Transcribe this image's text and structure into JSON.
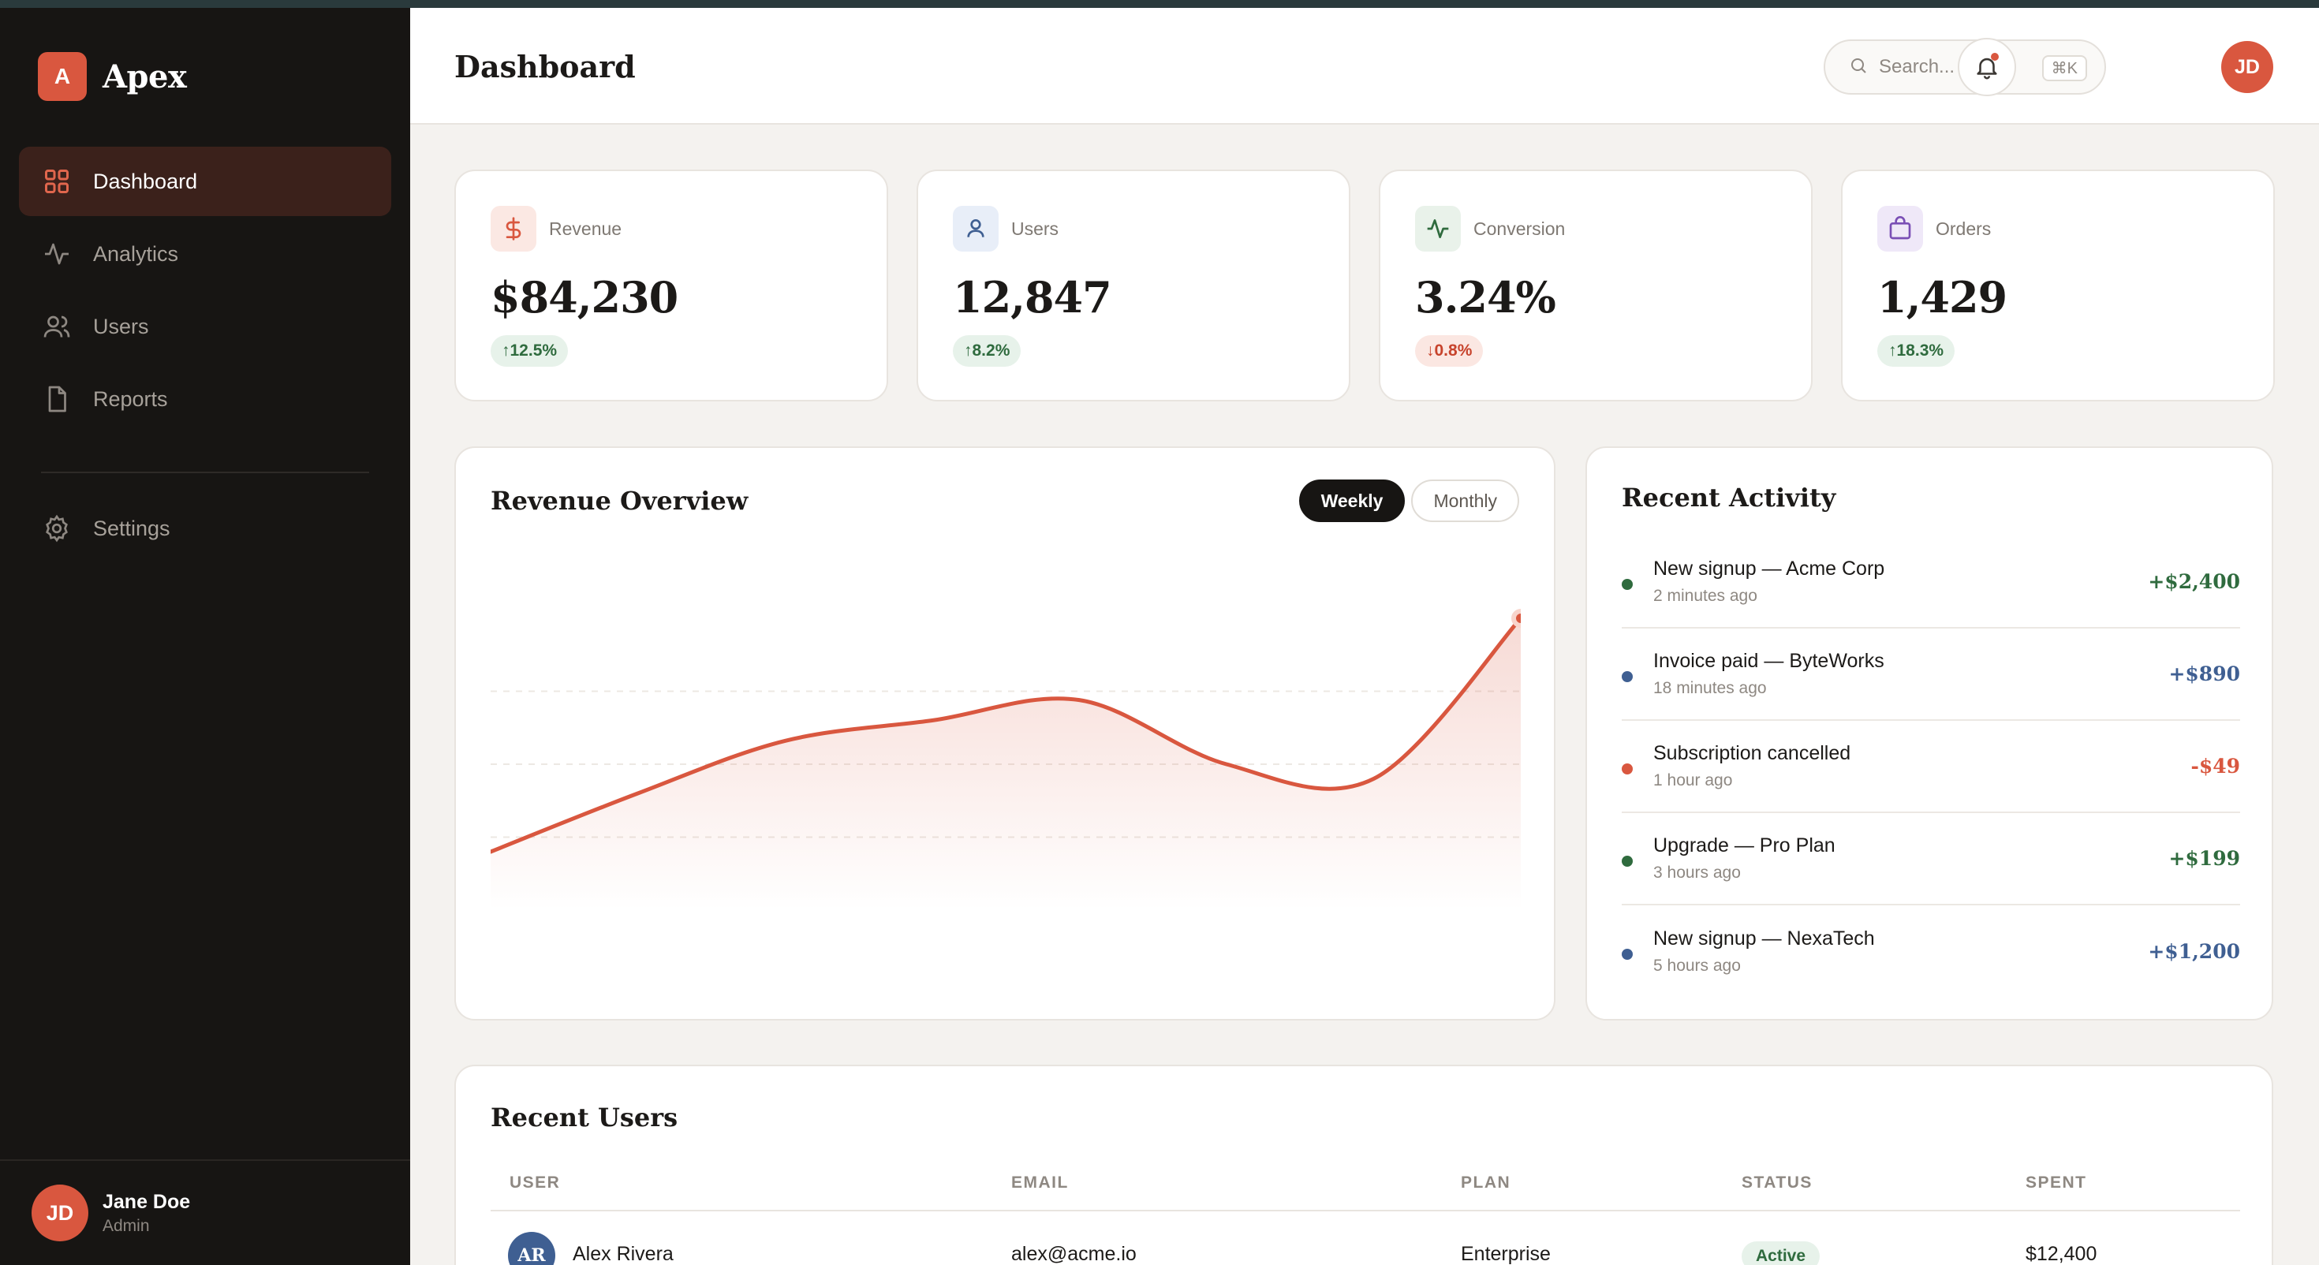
{
  "brand": {
    "badge": "A",
    "name": "Apex"
  },
  "sidebar": {
    "items": [
      {
        "label": "Dashboard",
        "icon": "grid-icon",
        "active": true
      },
      {
        "label": "Analytics",
        "icon": "activity-icon",
        "active": false
      },
      {
        "label": "Users",
        "icon": "users-icon",
        "active": false
      },
      {
        "label": "Reports",
        "icon": "file-icon",
        "active": false
      }
    ],
    "settings": {
      "label": "Settings",
      "icon": "gear-icon"
    },
    "user": {
      "initials": "JD",
      "name": "Jane Doe",
      "role": "Admin"
    }
  },
  "header": {
    "title": "Dashboard",
    "search": {
      "placeholder": "Search...",
      "shortcut": "⌘K"
    },
    "avatar_initials": "JD"
  },
  "stats": [
    {
      "label": "Revenue",
      "value": "$84,230",
      "delta": "12.5%",
      "direction": "up",
      "icon": "dollar-icon",
      "icon_bg": "#fbe8e3",
      "icon_color": "#d9573f"
    },
    {
      "label": "Users",
      "value": "12,847",
      "delta": "8.2%",
      "direction": "up",
      "icon": "user-icon",
      "icon_bg": "#e8eef8",
      "icon_color": "#3f5f92"
    },
    {
      "label": "Conversion",
      "value": "3.24%",
      "delta": "0.8%",
      "direction": "down",
      "icon": "activity-icon",
      "icon_bg": "#e9f2ea",
      "icon_color": "#2f6b3e"
    },
    {
      "label": "Orders",
      "value": "1,429",
      "delta": "18.3%",
      "direction": "up",
      "icon": "bag-icon",
      "icon_bg": "#efe8f8",
      "icon_color": "#7a4fb5"
    }
  ],
  "revenue_overview": {
    "title": "Revenue Overview",
    "tabs": [
      {
        "label": "Weekly",
        "active": true
      },
      {
        "label": "Monthly",
        "active": false
      }
    ]
  },
  "chart_data": {
    "type": "area",
    "x": [
      0,
      1,
      2,
      3,
      4,
      5,
      6,
      7
    ],
    "values": [
      20,
      40,
      58,
      65,
      72,
      50,
      45,
      100
    ],
    "ylim": [
      0,
      100
    ],
    "grid": true,
    "line_color": "#d9573f"
  },
  "activity": {
    "title": "Recent Activity",
    "items": [
      {
        "title": "New signup — Acme Corp",
        "time": "2 minutes ago",
        "amount": "+$2,400",
        "color": "#2f6b3e"
      },
      {
        "title": "Invoice paid — ByteWorks",
        "time": "18 minutes ago",
        "amount": "+$890",
        "color": "#3f5f92"
      },
      {
        "title": "Subscription cancelled",
        "time": "1 hour ago",
        "amount": "-$49",
        "color": "#d9573f"
      },
      {
        "title": "Upgrade — Pro Plan",
        "time": "3 hours ago",
        "amount": "+$199",
        "color": "#2f6b3e"
      },
      {
        "title": "New signup — NexaTech",
        "time": "5 hours ago",
        "amount": "+$1,200",
        "color": "#3f5f92"
      }
    ]
  },
  "recent_users": {
    "title": "Recent Users",
    "columns": [
      "USER",
      "EMAIL",
      "PLAN",
      "STATUS",
      "SPENT"
    ],
    "rows": [
      {
        "initials": "AR",
        "name": "Alex Rivera",
        "email": "alex@acme.io",
        "plan": "Enterprise",
        "status": "Active",
        "spent": "$12,400"
      }
    ]
  }
}
